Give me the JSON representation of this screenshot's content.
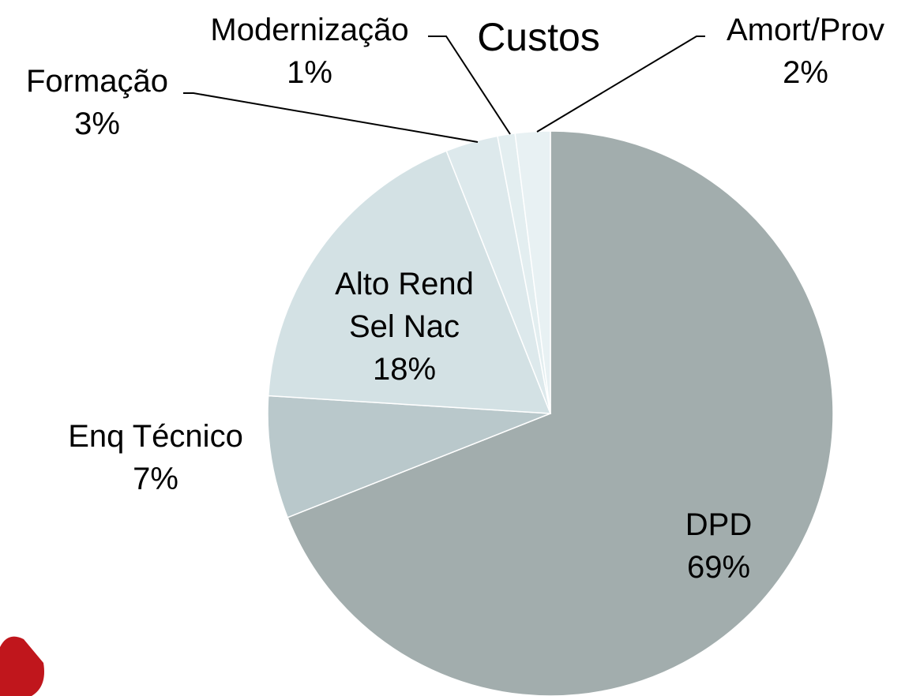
{
  "chart_data": {
    "type": "pie",
    "title": "Custos",
    "categories": [
      "DPD",
      "Enq Técnico",
      "Alto Rend Sel Nac",
      "Formação",
      "Modernização",
      "Amort/Prov"
    ],
    "values": [
      69,
      7,
      18,
      3,
      1,
      2
    ],
    "value_labels": [
      "69%",
      "7%",
      "18%",
      "3%",
      "1%",
      "2%"
    ],
    "colors": [
      "#a2adad",
      "#b9c8cb",
      "#d3e1e4",
      "#dde9ec",
      "#e3eef0",
      "#e8f1f3"
    ]
  }
}
